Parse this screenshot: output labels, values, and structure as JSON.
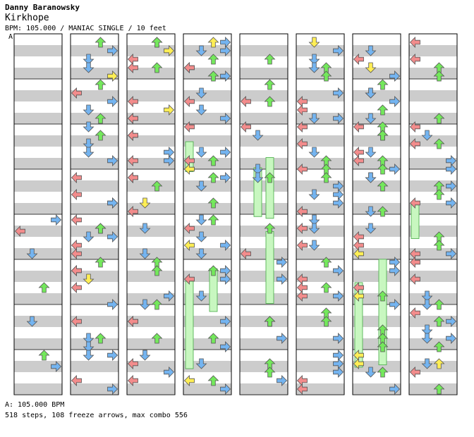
{
  "header": {
    "artist": "Danny Baranowsky",
    "title": "Kirkhope",
    "info": "BPM: 105.000 / MANIAC SINGLE / 10 feet"
  },
  "bpm_marker": "A",
  "footer": {
    "bpm_line": "A: 105.000 BPM",
    "summary": "518 steps, 108 freeze arrows, max combo 556"
  },
  "colors": {
    "left_arrow": "#f28c8c",
    "down_arrow": "#74b4f0",
    "up_arrow": "#74e85c",
    "right_arrow": "#74b4f0",
    "quarter_arrow": "#ff9090",
    "eighth_arrow": "#7fb8f2",
    "sixteenth_arrow": "#ffee55",
    "freeze_fill": "#c8f7c0",
    "freeze_border": "#44aa44",
    "stripe": "#cccccc"
  }
}
